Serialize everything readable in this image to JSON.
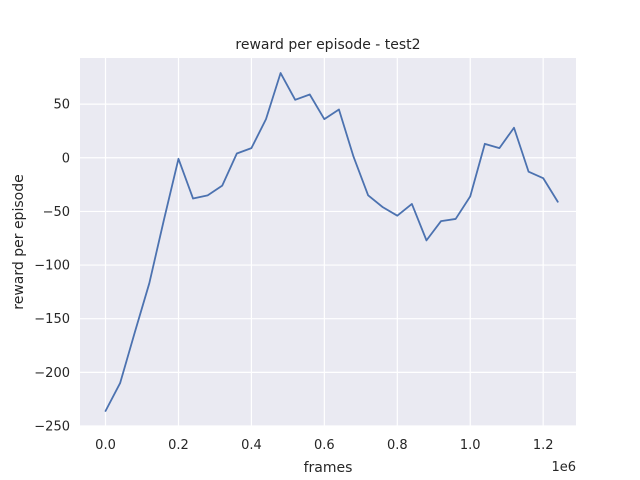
{
  "chart_data": {
    "type": "line",
    "title": "reward per episode - test2",
    "xlabel": "frames",
    "ylabel": "reward per episode",
    "x_offset_text": "1e6",
    "xlim": [
      -0.07,
      1.29
    ],
    "ylim": [
      -250,
      93
    ],
    "x_ticks": [
      0.0,
      0.2,
      0.4,
      0.6,
      0.8,
      1.0,
      1.2
    ],
    "x_tick_labels": [
      "0.0",
      "0.2",
      "0.4",
      "0.6",
      "0.8",
      "1.0",
      "1.2"
    ],
    "y_ticks": [
      -250,
      -200,
      -150,
      -100,
      -50,
      0,
      50
    ],
    "y_tick_labels": [
      "−250",
      "−200",
      "−150",
      "−100",
      "−50",
      "0",
      "50"
    ],
    "grid": true,
    "background": "#eaeaf2",
    "series": [
      {
        "color": "#4c72b0",
        "x": [
          0.0,
          0.04,
          0.08,
          0.12,
          0.16,
          0.2,
          0.24,
          0.28,
          0.32,
          0.36,
          0.4,
          0.44,
          0.48,
          0.52,
          0.56,
          0.6,
          0.64,
          0.68,
          0.72,
          0.76,
          0.8,
          0.84,
          0.88,
          0.92,
          0.96,
          1.0,
          1.04,
          1.08,
          1.12,
          1.16,
          1.2,
          1.24
        ],
        "y": [
          -236,
          -210,
          -163,
          -117,
          -58,
          -1,
          -38,
          -35,
          -26,
          4,
          9,
          36,
          79,
          54,
          59,
          36,
          45,
          1,
          -35,
          -46,
          -54,
          -43,
          -77,
          -59,
          -57,
          -36,
          13,
          9,
          28,
          -13,
          -19,
          -41
        ]
      }
    ]
  }
}
